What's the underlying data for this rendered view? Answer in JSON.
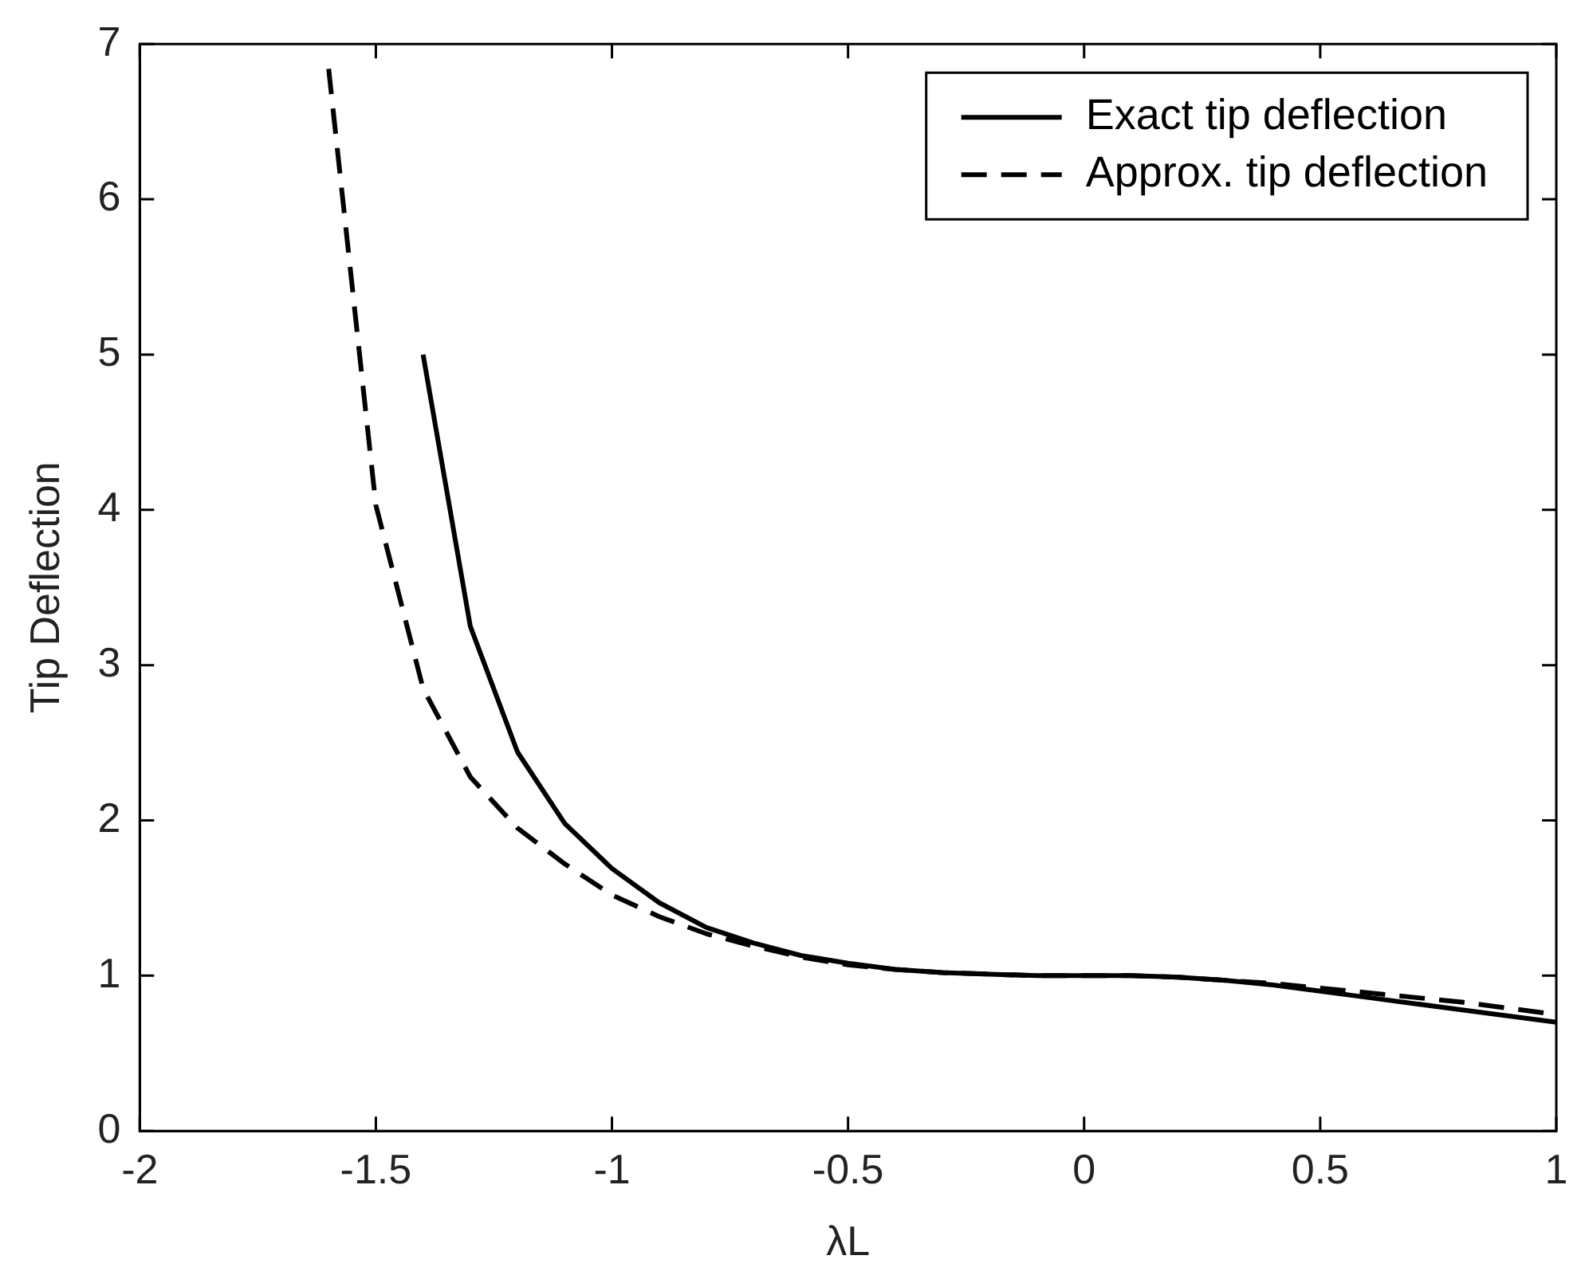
{
  "chart_data": {
    "type": "line",
    "xlabel": "λL",
    "ylabel": "Tip Deflection",
    "xlim": [
      -2,
      1
    ],
    "ylim": [
      0,
      7
    ],
    "xticks": [
      -2,
      -1.5,
      -1,
      -0.5,
      0,
      0.5,
      1
    ],
    "yticks": [
      0,
      1,
      2,
      3,
      4,
      5,
      6,
      7
    ],
    "grid": false,
    "legend": "top right",
    "marker": "none",
    "series": [
      {
        "name": "Exact tip deflection",
        "color": "#000000",
        "line_style": "solid",
        "x": [
          -1.4,
          -1.3,
          -1.2,
          -1.1,
          -1.0,
          -0.9,
          -0.8,
          -0.7,
          -0.6,
          -0.5,
          -0.4,
          -0.3,
          -0.2,
          -0.1,
          0,
          0.1,
          0.2,
          0.3,
          0.4,
          0.5,
          0.6,
          0.7,
          0.8,
          0.9,
          1.0
        ],
        "values": [
          5.0,
          3.25,
          2.44,
          1.98,
          1.69,
          1.47,
          1.31,
          1.21,
          1.13,
          1.08,
          1.04,
          1.02,
          1.01,
          1.0,
          1.0,
          1.0,
          0.99,
          0.97,
          0.94,
          0.9,
          0.86,
          0.82,
          0.78,
          0.74,
          0.7
        ]
      },
      {
        "name": "Approx. tip deflection",
        "color": "#000000",
        "line_style": "dashed",
        "x": [
          -1.6,
          -1.5,
          -1.4,
          -1.3,
          -1.2,
          -1.1,
          -1.0,
          -0.9,
          -0.8,
          -0.7,
          -0.6,
          -0.5,
          -0.4,
          -0.3,
          -0.2,
          -0.1,
          0,
          0.1,
          0.2,
          0.3,
          0.4,
          0.5,
          0.6,
          0.7,
          0.8,
          0.9,
          1.0
        ],
        "values": [
          6.84,
          4.03,
          2.85,
          2.28,
          1.95,
          1.72,
          1.52,
          1.38,
          1.27,
          1.19,
          1.12,
          1.07,
          1.04,
          1.02,
          1.01,
          1.0,
          1.0,
          1.0,
          0.99,
          0.97,
          0.95,
          0.92,
          0.89,
          0.86,
          0.83,
          0.79,
          0.75
        ]
      }
    ]
  }
}
